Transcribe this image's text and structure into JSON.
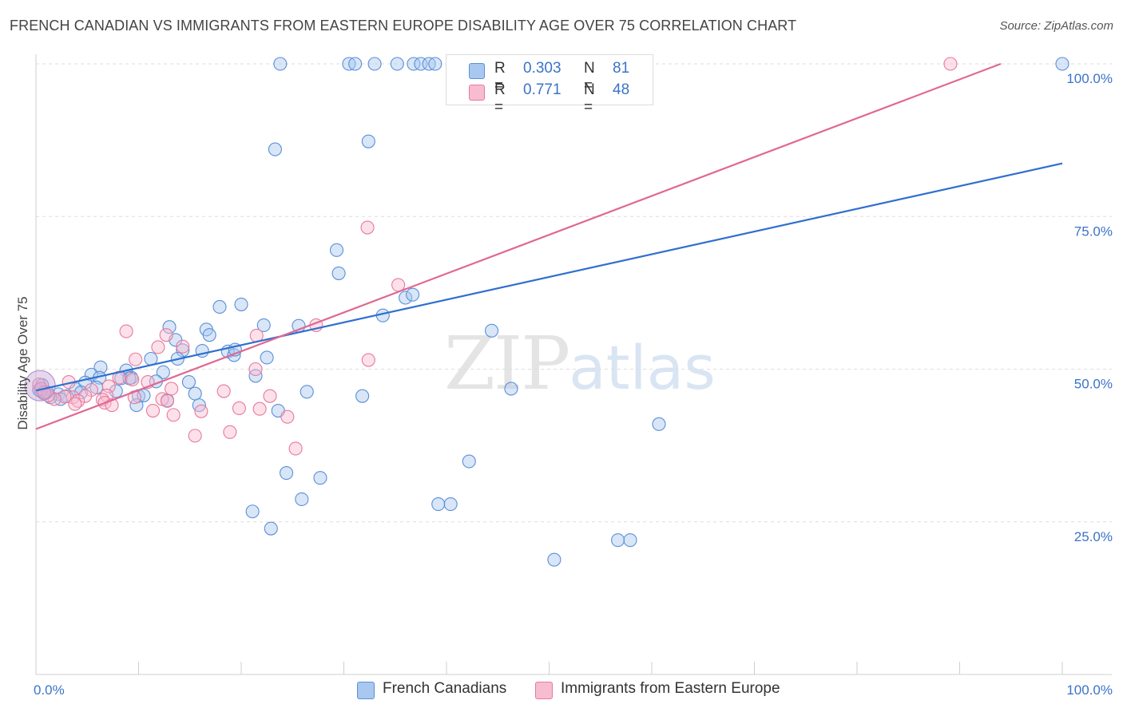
{
  "title": "FRENCH CANADIAN VS IMMIGRANTS FROM EASTERN EUROPE DISABILITY AGE OVER 75 CORRELATION CHART",
  "source": "Source: ZipAtlas.com",
  "watermark": {
    "zip": "ZIP",
    "atlas": "atlas"
  },
  "legend": {
    "rows": [
      {
        "r_label": "R =",
        "r_value": "0.303",
        "n_label": "N =",
        "n_value": "81",
        "color": "#a8c8f0",
        "border": "#5b8fd6"
      },
      {
        "r_label": "R =",
        "r_value": "0.771",
        "n_label": "N =",
        "n_value": "48",
        "color": "#f8bcd0",
        "border": "#e8799c"
      }
    ]
  },
  "bottom_legend": [
    {
      "label": "French Canadians",
      "color": "#a8c8f0",
      "border": "#5b8fd6"
    },
    {
      "label": "Immigrants from Eastern Europe",
      "color": "#f8bcd0",
      "border": "#e8799c"
    }
  ],
  "chart_data": {
    "type": "scatter",
    "title": "FRENCH CANADIAN VS IMMIGRANTS FROM EASTERN EUROPE DISABILITY AGE OVER 75 CORRELATION CHART",
    "xlabel": "",
    "ylabel": "Disability Age Over 75",
    "xlim": [
      0,
      100
    ],
    "ylim": [
      0,
      100
    ],
    "x_tick_labels": [
      "0.0%",
      "100.0%"
    ],
    "y_tick_labels": [
      "25.0%",
      "50.0%",
      "75.0%",
      "100.0%"
    ],
    "y_ticks": [
      25,
      50,
      75,
      100
    ],
    "grid": true,
    "legend_position": "top-center",
    "series": [
      {
        "name": "French Canadians",
        "color": "#5b8fd6",
        "fill": "#a8c8f0",
        "trend": [
          [
            0,
            46.5
          ],
          [
            100,
            83.7
          ]
        ],
        "points": [
          [
            23.8,
            100
          ],
          [
            30.5,
            100
          ],
          [
            31.1,
            100
          ],
          [
            33,
            100
          ],
          [
            35.2,
            100
          ],
          [
            36.8,
            100
          ],
          [
            37.5,
            100
          ],
          [
            38.3,
            100
          ],
          [
            38.9,
            100
          ],
          [
            100,
            100
          ],
          [
            23.3,
            86
          ],
          [
            32.4,
            87.3
          ],
          [
            29.3,
            69.5
          ],
          [
            29.5,
            65.7
          ],
          [
            36,
            61.7
          ],
          [
            36.7,
            62.2
          ],
          [
            33.8,
            58.8
          ],
          [
            20,
            60.6
          ],
          [
            17.9,
            60.2
          ],
          [
            22.2,
            57.2
          ],
          [
            25.6,
            57.1
          ],
          [
            13,
            56.9
          ],
          [
            16.6,
            56.5
          ],
          [
            16.9,
            55.6
          ],
          [
            13.6,
            54.8
          ],
          [
            14.3,
            53.1
          ],
          [
            16.2,
            53
          ],
          [
            18.7,
            52.9
          ],
          [
            19.3,
            52.3
          ],
          [
            22.5,
            51.9
          ],
          [
            11.2,
            51.7
          ],
          [
            6.3,
            50.3
          ],
          [
            8.8,
            49.8
          ],
          [
            12.4,
            49.5
          ],
          [
            5.4,
            49.1
          ],
          [
            6.2,
            48.6
          ],
          [
            8.3,
            48.5
          ],
          [
            9.3,
            48.6
          ],
          [
            21.4,
            48.9
          ],
          [
            4.8,
            47.8
          ],
          [
            11.7,
            48
          ],
          [
            14.9,
            47.9
          ],
          [
            3.9,
            46.7
          ],
          [
            5.9,
            47
          ],
          [
            4.4,
            46.2
          ],
          [
            0.8,
            46
          ],
          [
            2.2,
            45.9
          ],
          [
            3,
            45.6
          ],
          [
            7.8,
            46.4
          ],
          [
            10,
            45.6
          ],
          [
            10.5,
            45.7
          ],
          [
            12.8,
            44.9
          ],
          [
            15.5,
            46
          ],
          [
            26.4,
            46.3
          ],
          [
            31.8,
            45.6
          ],
          [
            46.3,
            46.8
          ],
          [
            2.4,
            45.1
          ],
          [
            1.4,
            45.4
          ],
          [
            9.8,
            44.1
          ],
          [
            15.9,
            44.1
          ],
          [
            23.6,
            43.2
          ],
          [
            1.1,
            46.2
          ],
          [
            0.5,
            46.4
          ],
          [
            44.4,
            56.3
          ],
          [
            60.7,
            41
          ],
          [
            42.2,
            34.9
          ],
          [
            24.4,
            33
          ],
          [
            27.7,
            32.2
          ],
          [
            25.9,
            28.7
          ],
          [
            40.4,
            27.9
          ],
          [
            39.2,
            27.9
          ],
          [
            21.1,
            26.7
          ],
          [
            22.9,
            23.9
          ],
          [
            56.7,
            22
          ],
          [
            57.9,
            22
          ],
          [
            50.5,
            18.8
          ],
          [
            9.1,
            48.5
          ],
          [
            13.8,
            51.7
          ],
          [
            19.4,
            53.2
          ],
          [
            0.3,
            46.6
          ],
          [
            0.6,
            47.4
          ]
        ]
      },
      {
        "name": "Immigrants from Eastern Europe",
        "color": "#e8799c",
        "fill": "#f8bcd0",
        "trend": [
          [
            0,
            40.2
          ],
          [
            94,
            100
          ]
        ],
        "points": [
          [
            47.1,
            100
          ],
          [
            89.1,
            100
          ],
          [
            32.3,
            73.2
          ],
          [
            35.3,
            63.8
          ],
          [
            27.3,
            57.2
          ],
          [
            8.8,
            56.2
          ],
          [
            21.5,
            55.5
          ],
          [
            12.7,
            55.6
          ],
          [
            11.9,
            53.6
          ],
          [
            14.3,
            53.7
          ],
          [
            9.7,
            51.6
          ],
          [
            32.4,
            51.5
          ],
          [
            21.4,
            50
          ],
          [
            3.2,
            47.9
          ],
          [
            8.1,
            48.6
          ],
          [
            9.4,
            48.3
          ],
          [
            10.9,
            47.9
          ],
          [
            13.2,
            46.8
          ],
          [
            5.4,
            46.6
          ],
          [
            7.1,
            47.2
          ],
          [
            18.3,
            46.4
          ],
          [
            4.8,
            45.6
          ],
          [
            6.9,
            45.7
          ],
          [
            9.6,
            45.4
          ],
          [
            22.8,
            45.6
          ],
          [
            12.3,
            45.1
          ],
          [
            6.5,
            45
          ],
          [
            3.6,
            45.4
          ],
          [
            2.8,
            45.5
          ],
          [
            4.1,
            44.8
          ],
          [
            1.8,
            45.1
          ],
          [
            6.7,
            44.5
          ],
          [
            7.4,
            44.1
          ],
          [
            3.8,
            44.3
          ],
          [
            12.8,
            44.8
          ],
          [
            11.4,
            43.2
          ],
          [
            16.1,
            43.1
          ],
          [
            19.8,
            43.6
          ],
          [
            21.8,
            43.5
          ],
          [
            13.4,
            42.5
          ],
          [
            24.5,
            42.2
          ],
          [
            15.5,
            39.1
          ],
          [
            18.9,
            39.7
          ],
          [
            25.3,
            37
          ],
          [
            0.3,
            47.5
          ],
          [
            0.5,
            46.8
          ],
          [
            1.2,
            45.7
          ],
          [
            0.8,
            46.2
          ]
        ]
      }
    ]
  }
}
